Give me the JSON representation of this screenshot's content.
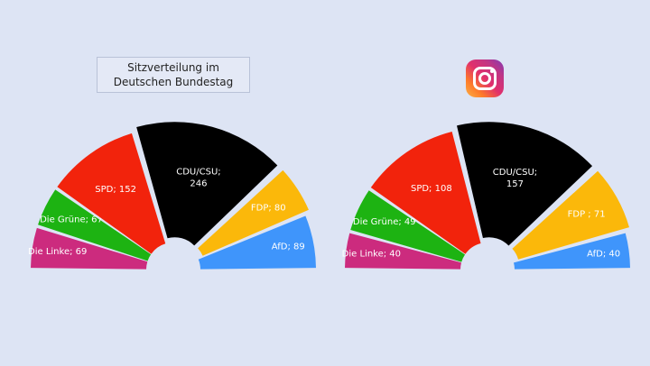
{
  "title": {
    "line1": "Sitzverteilung im",
    "line2": "Deutschen Bundestag"
  },
  "logo_icon": "instagram-icon",
  "chart_data": [
    {
      "type": "pie",
      "variant": "semicircle-donut",
      "title": "Sitzverteilung im Deutschen Bundestag",
      "slices": [
        {
          "label": "Die Linke; 69",
          "value": 69,
          "color": "#cc2b7e"
        },
        {
          "label": "Die Grüne; 67",
          "value": 67,
          "color": "#1db312"
        },
        {
          "label": "SPD; 152",
          "value": 152,
          "color": "#f2230c"
        },
        {
          "label": "CDU/CSU;",
          "label2": "246",
          "value": 246,
          "color": "#000000"
        },
        {
          "label": "FDP; 80",
          "value": 80,
          "color": "#fbb80a"
        },
        {
          "label": "AfD; 89",
          "value": 89,
          "color": "#3f95fb"
        }
      ]
    },
    {
      "type": "pie",
      "variant": "semicircle-donut",
      "slices": [
        {
          "label": "Die Linke; 40",
          "value": 40,
          "color": "#cc2b7e"
        },
        {
          "label": "Die Grüne; 49",
          "value": 49,
          "color": "#1db312"
        },
        {
          "label": "SPD; 108",
          "value": 108,
          "color": "#f2230c"
        },
        {
          "label": "CDU/CSU;",
          "label2": "157",
          "value": 157,
          "color": "#000000"
        },
        {
          "label": "FDP ; 71",
          "value": 71,
          "color": "#fbb80a"
        },
        {
          "label": "AfD; 40",
          "value": 40,
          "color": "#3f95fb"
        }
      ]
    }
  ]
}
